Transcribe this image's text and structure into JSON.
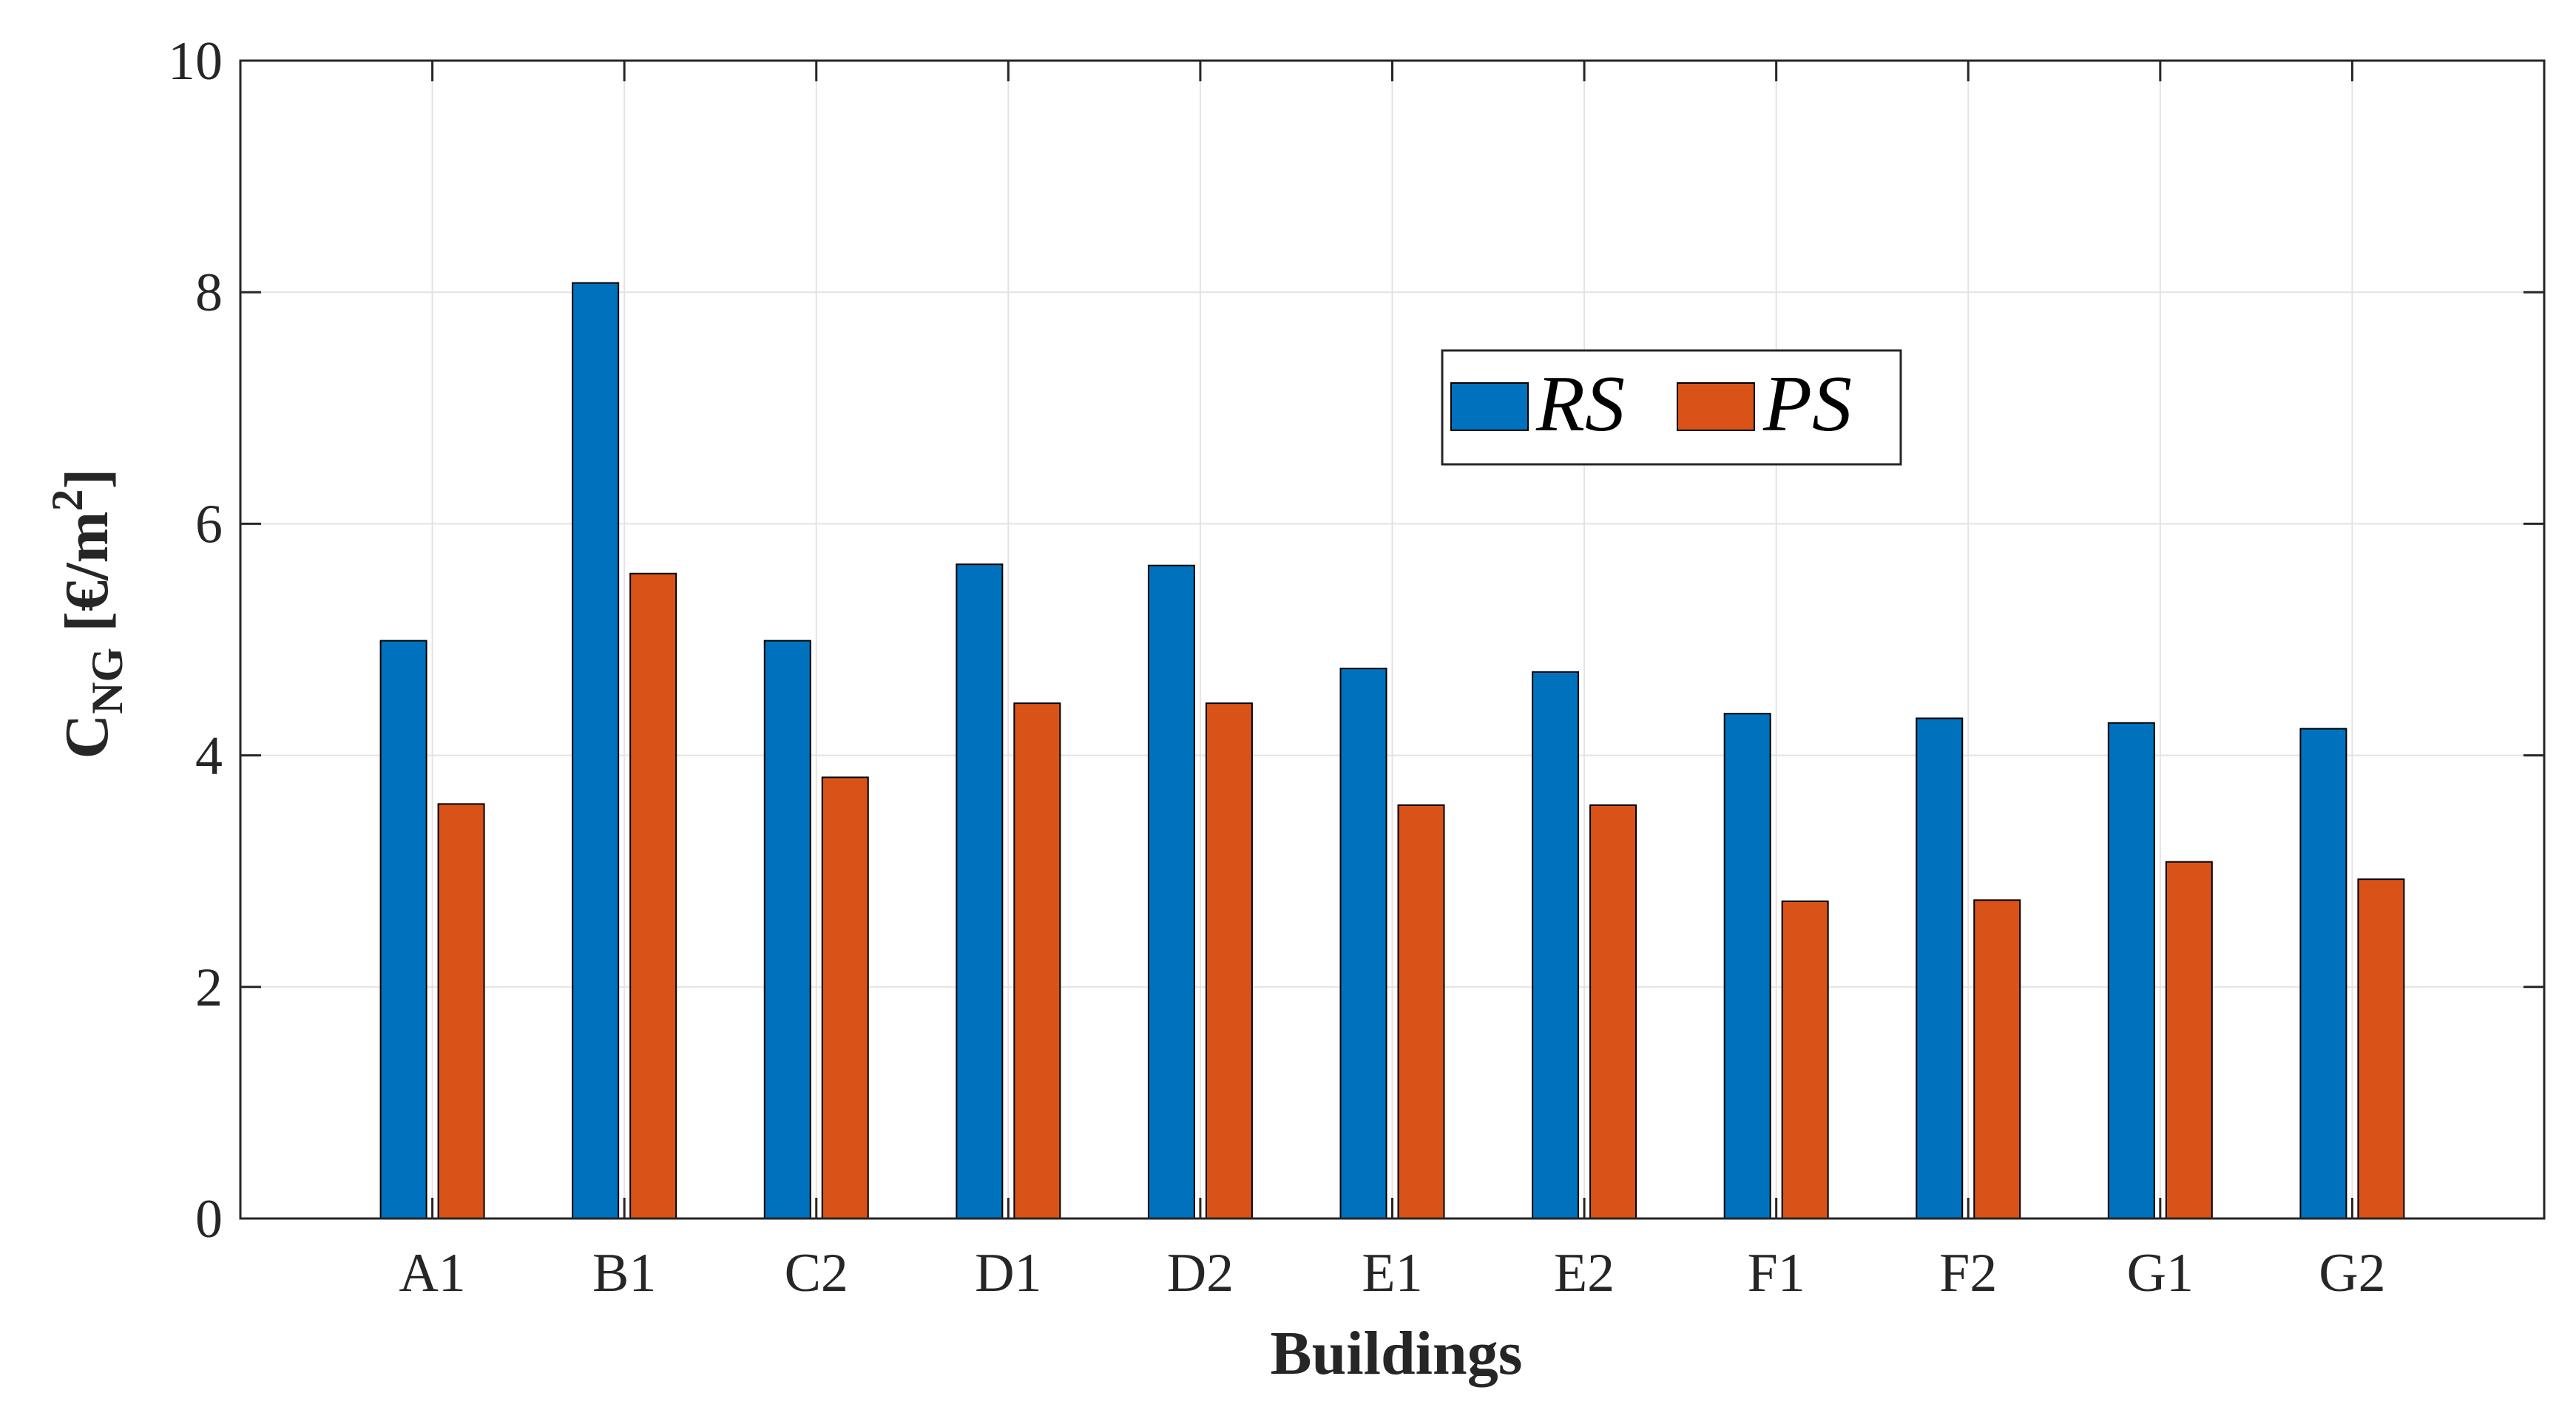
{
  "chart_data": {
    "type": "bar",
    "title": "",
    "xlabel": "Buildings",
    "ylabel": {
      "main": "C",
      "subscript": "NG",
      "unit_prefix": " [€/m",
      "superscript": "2",
      "unit_suffix": "]"
    },
    "categories": [
      "A1",
      "B1",
      "C2",
      "D1",
      "D2",
      "E1",
      "E2",
      "F1",
      "F2",
      "G1",
      "G2"
    ],
    "series": [
      {
        "name": "RS",
        "color": "#0072BD",
        "values": [
          4.99,
          8.08,
          4.99,
          5.65,
          5.64,
          4.75,
          4.72,
          4.36,
          4.32,
          4.28,
          4.23
        ]
      },
      {
        "name": "PS",
        "color": "#D95319",
        "values": [
          3.58,
          5.57,
          3.81,
          4.45,
          4.45,
          3.57,
          3.57,
          2.74,
          2.75,
          3.08,
          2.93
        ]
      }
    ],
    "ylim": [
      0,
      10
    ],
    "yticks": [
      0,
      2,
      4,
      6,
      8,
      10
    ],
    "grid": true,
    "legend_position": "upper-center",
    "legend_orientation": "horizontal"
  }
}
